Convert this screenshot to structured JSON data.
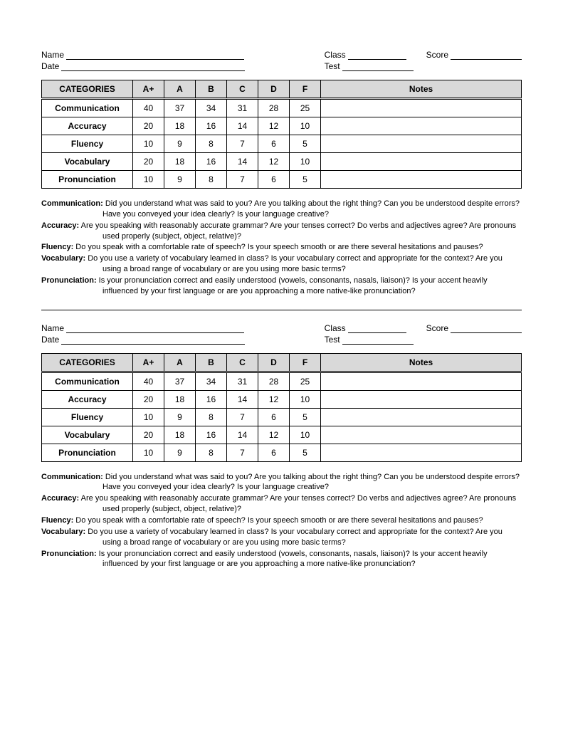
{
  "fields": {
    "name": "Name",
    "date": "Date",
    "class": "Class",
    "score": "Score",
    "test": "Test"
  },
  "table": {
    "headers": {
      "categories": "CATEGORIES",
      "grades": [
        "A+",
        "A",
        "B",
        "C",
        "D",
        "F"
      ],
      "notes": "Notes"
    },
    "rows": [
      {
        "label": "Communication",
        "values": [
          "40",
          "37",
          "34",
          "31",
          "28",
          "25"
        ]
      },
      {
        "label": "Accuracy",
        "values": [
          "20",
          "18",
          "16",
          "14",
          "12",
          "10"
        ]
      },
      {
        "label": "Fluency",
        "values": [
          "10",
          "9",
          "8",
          "7",
          "6",
          "5"
        ]
      },
      {
        "label": "Vocabulary",
        "values": [
          "20",
          "18",
          "16",
          "14",
          "12",
          "10"
        ]
      },
      {
        "label": "Pronunciation",
        "values": [
          "10",
          "9",
          "8",
          "7",
          "6",
          "5"
        ]
      }
    ]
  },
  "descriptions": [
    {
      "term": "Communication:",
      "text": "Did you understand what was said to you? Are you talking about the right thing? Can you be understood despite errors? Have you conveyed your idea clearly? Is your language creative?"
    },
    {
      "term": "Accuracy:",
      "text": "Are you speaking with reasonably accurate grammar? Are your tenses correct? Do verbs and adjectives agree? Are pronouns used properly (subject, object, relative)?"
    },
    {
      "term": "Fluency:",
      "text": "Do you speak with a comfortable rate of speech? Is your speech smooth or are there several hesitations and pauses?"
    },
    {
      "term": "Vocabulary:",
      "text": "Do you use a variety of vocabulary learned in class? Is your vocabulary correct and appropriate for the context?  Are you using a broad range of vocabulary or are you using more basic terms?"
    },
    {
      "term": "Pronunciation:",
      "text": "Is your pronunciation correct and easily understood (vowels, consonants, nasals, liaison)? Is your accent heavily influenced by your first language or are you approaching a more native-like pronunciation?"
    }
  ]
}
